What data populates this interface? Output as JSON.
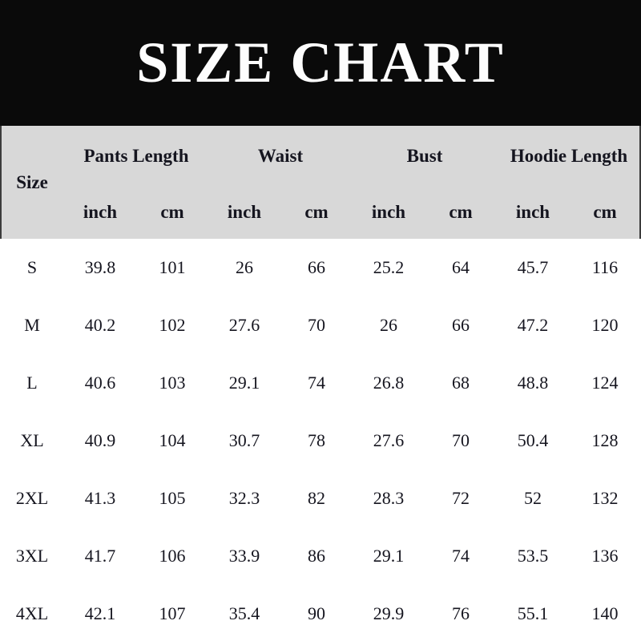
{
  "banner": {
    "title": "SIZE CHART"
  },
  "colors": {
    "banner_bg": "#0a0a0a",
    "banner_text": "#fdfdfd",
    "header_bg": "#d8d8d8",
    "body_bg": "#ffffff",
    "text": "#15151f",
    "edge_border": "#3c3c3c"
  },
  "chart_data": {
    "type": "table",
    "title": "SIZE CHART",
    "size_column_header": "Size",
    "groups": [
      {
        "label": "Pants Length",
        "units": [
          "inch",
          "cm"
        ]
      },
      {
        "label": "Waist",
        "units": [
          "inch",
          "cm"
        ]
      },
      {
        "label": "Bust",
        "units": [
          "inch",
          "cm"
        ]
      },
      {
        "label": "Hoodie Length",
        "units": [
          "inch",
          "cm"
        ]
      }
    ],
    "rows": [
      {
        "size": "S",
        "values": [
          "39.8",
          "101",
          "26",
          "66",
          "25.2",
          "64",
          "45.7",
          "116"
        ]
      },
      {
        "size": "M",
        "values": [
          "40.2",
          "102",
          "27.6",
          "70",
          "26",
          "66",
          "47.2",
          "120"
        ]
      },
      {
        "size": "L",
        "values": [
          "40.6",
          "103",
          "29.1",
          "74",
          "26.8",
          "68",
          "48.8",
          "124"
        ]
      },
      {
        "size": "XL",
        "values": [
          "40.9",
          "104",
          "30.7",
          "78",
          "27.6",
          "70",
          "50.4",
          "128"
        ]
      },
      {
        "size": "2XL",
        "values": [
          "41.3",
          "105",
          "32.3",
          "82",
          "28.3",
          "72",
          "52",
          "132"
        ]
      },
      {
        "size": "3XL",
        "values": [
          "41.7",
          "106",
          "33.9",
          "86",
          "29.1",
          "74",
          "53.5",
          "136"
        ]
      },
      {
        "size": "4XL",
        "values": [
          "42.1",
          "107",
          "35.4",
          "90",
          "29.9",
          "76",
          "55.1",
          "140"
        ]
      }
    ]
  }
}
